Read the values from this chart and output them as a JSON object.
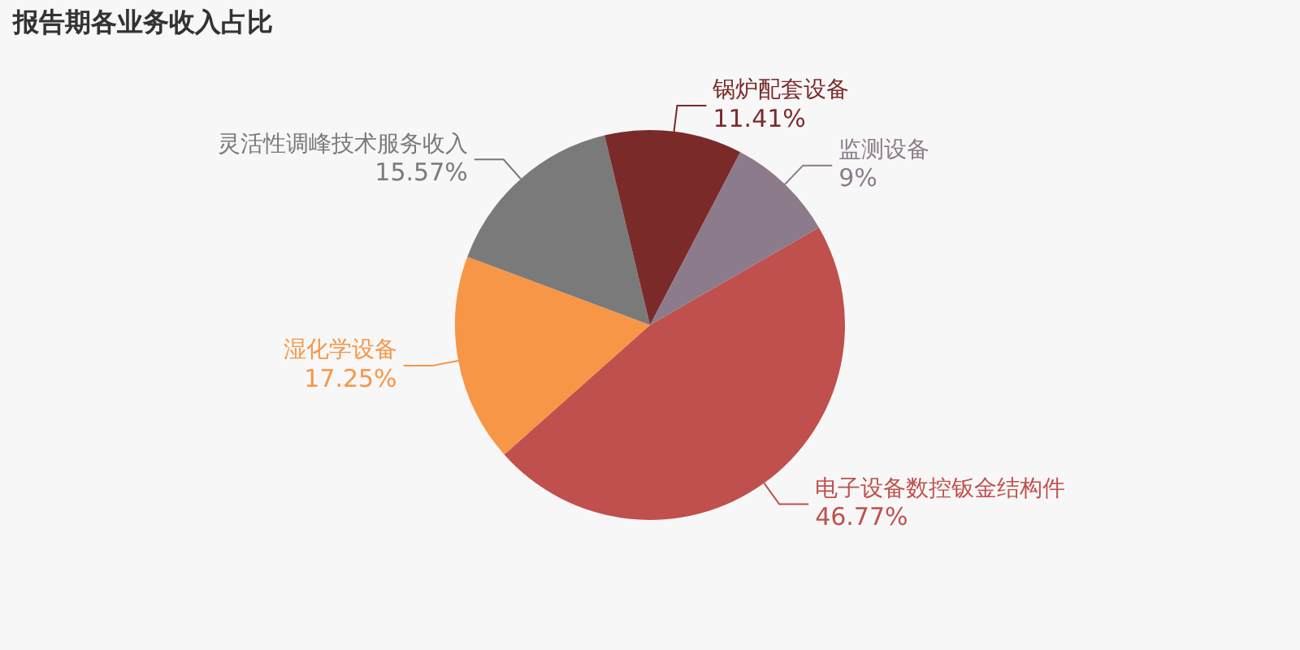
{
  "chart_data": {
    "type": "pie",
    "title": "报告期各业务收入占比",
    "categories": [
      "电子设备数控钣金结构件",
      "湿化学设备",
      "灵活性调峰技术服务收入",
      "锅炉配套设备",
      "监测设备"
    ],
    "values": [
      46.77,
      17.25,
      15.57,
      11.41,
      9
    ],
    "colors": [
      "#c0504d",
      "#f79646",
      "#7a7a7a",
      "#7b2a2a",
      "#8c7b8b"
    ],
    "value_labels": [
      "46.77%",
      "17.25%",
      "15.57%",
      "11.41%",
      "9%"
    ]
  }
}
